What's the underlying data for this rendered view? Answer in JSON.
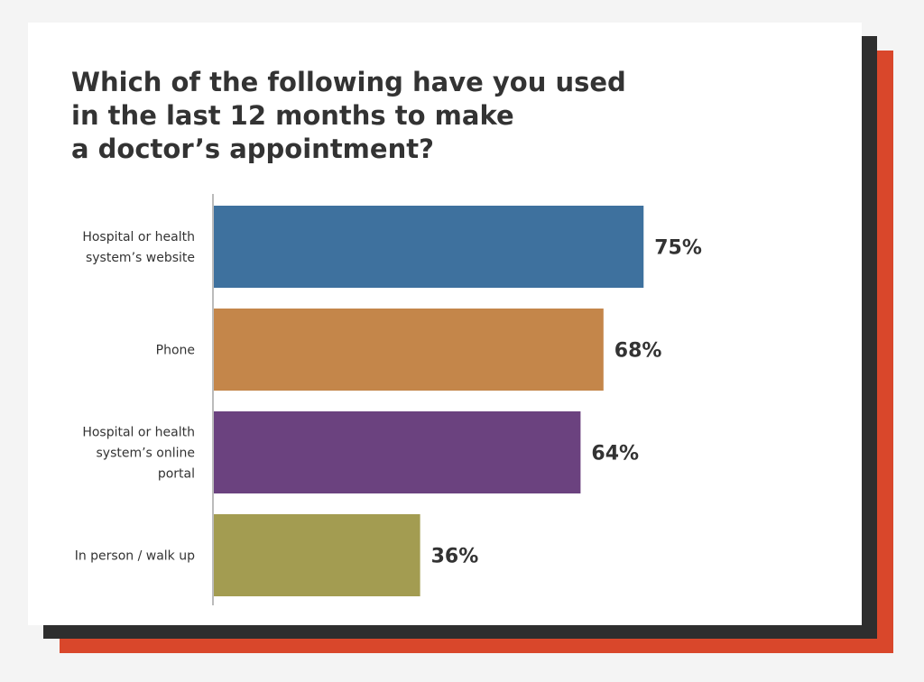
{
  "title": "Which of the following have you used\nin the last 12 months to make\na doctor’s appointment?",
  "chart_data": {
    "type": "bar",
    "orientation": "horizontal",
    "title": "Which of the following have you used in the last 12 months to make a doctor’s appointment?",
    "categories": [
      [
        "Hospital or health",
        "system’s website"
      ],
      [
        "Phone"
      ],
      [
        "Hospital or health",
        "system’s online",
        "portal"
      ],
      [
        "In person / walk up"
      ]
    ],
    "values": [
      75,
      68,
      64,
      36
    ],
    "value_labels": [
      "75%",
      "68%",
      "64%",
      "36%"
    ],
    "unit": "%",
    "colors": [
      "#3e719e",
      "#c4864a",
      "#6b427f",
      "#a39c51"
    ],
    "xlim": [
      0,
      100
    ],
    "grid": false,
    "legend": "none"
  },
  "colors": {
    "card": "#ffffff",
    "shadow_dark": "#2e2e2e",
    "shadow_accent": "#d9472b",
    "axis": "#bbbbbb",
    "text": "#333333"
  }
}
